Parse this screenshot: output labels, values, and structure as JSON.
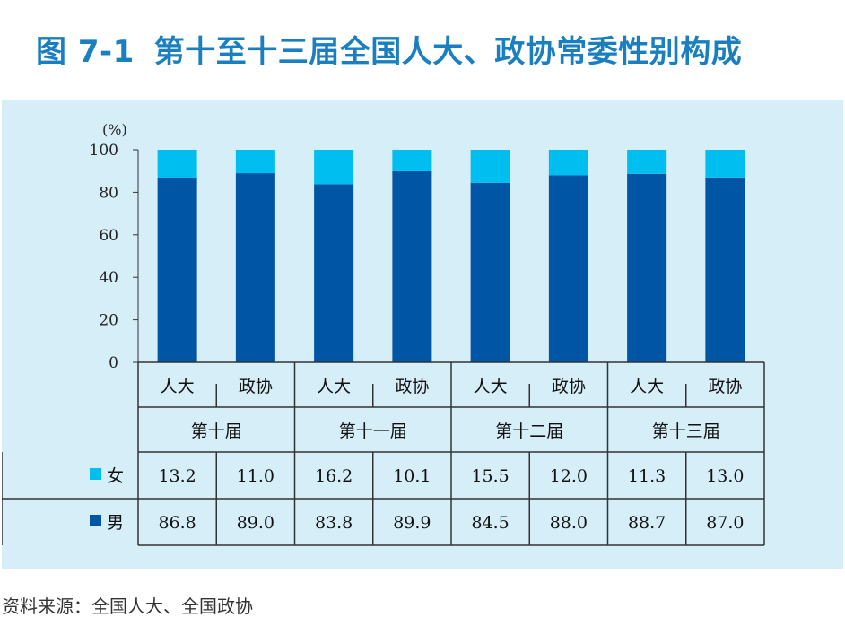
{
  "header": {
    "figure_number": "图 7-1",
    "title": "第十至十三届全国人大、政协常委性别构成"
  },
  "footer": {
    "source": "资料来源：全国人大、全国政协"
  },
  "colors": {
    "female": "#00bff0",
    "male": "#0055a5",
    "title": "#1a7fc0",
    "panel": "#d6eef8"
  },
  "chart_data": {
    "type": "bar",
    "stacked": true,
    "ylabel": "(%)",
    "ylim": [
      0,
      100
    ],
    "yticks": [
      "0",
      "20",
      "40",
      "60",
      "80",
      "100"
    ],
    "categories": [
      "人大",
      "政协",
      "人大",
      "政协",
      "人大",
      "政协",
      "人大",
      "政协"
    ],
    "groups": [
      "第十届",
      "第十一届",
      "第十二届",
      "第十三届"
    ],
    "series": [
      {
        "name": "男",
        "color": "#0055a5",
        "values": [
          86.8,
          89.0,
          83.8,
          89.9,
          84.5,
          88.0,
          88.7,
          87.0
        ],
        "labels": [
          "86.8",
          "89.0",
          "83.8",
          "89.9",
          "84.5",
          "88.0",
          "88.7",
          "87.0"
        ]
      },
      {
        "name": "女",
        "color": "#00bff0",
        "values": [
          13.2,
          11.0,
          16.2,
          10.1,
          15.5,
          12.0,
          11.3,
          13.0
        ],
        "labels": [
          "13.2",
          "11.0",
          "16.2",
          "10.1",
          "15.5",
          "12.0",
          "11.3",
          "13.0"
        ]
      }
    ],
    "grid": false,
    "legend": "table-left"
  }
}
